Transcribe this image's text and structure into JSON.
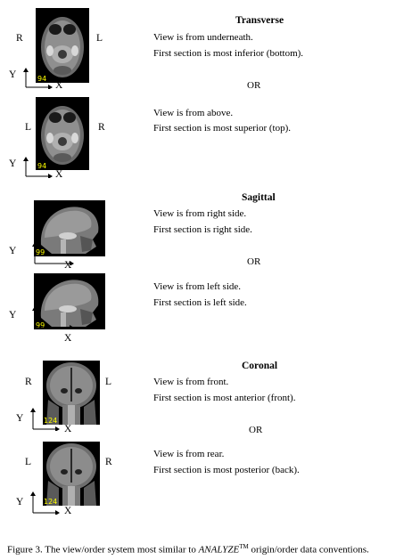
{
  "transverse": {
    "heading": "Transverse",
    "view1": {
      "line1": "View is from underneath.",
      "line2": "First section is most inferior (bottom).",
      "left": "R",
      "right": "L"
    },
    "or": "OR",
    "view2": {
      "line1": "View is from above.",
      "line2": "First section is most superior (top).",
      "left": "L",
      "right": "R"
    }
  },
  "sagittal": {
    "heading": "Sagittal",
    "view1": {
      "line1": "View is from right side.",
      "line2": "First section is right side."
    },
    "or": "OR",
    "view2": {
      "line1": "View is from left side.",
      "line2": "First section is left side."
    }
  },
  "coronal": {
    "heading": "Coronal",
    "view1": {
      "line1": "View is from front.",
      "line2": "First section is most anterior (front).",
      "left": "R",
      "right": "L"
    },
    "or": "OR",
    "view2": {
      "line1": "View is from rear.",
      "line2": "First section is most posterior (back).",
      "left": "L",
      "right": "R"
    }
  },
  "axes": {
    "y": "Y",
    "x": "X"
  },
  "slice_labels": {
    "transverse": "94",
    "sagittal": "99",
    "coronal": "124"
  },
  "caption": {
    "prefix": "Figure 3. The view/order system most similar to ",
    "brand": "ANALYZE",
    "tm": "TM",
    "suffix": " origin/order data conventions."
  }
}
